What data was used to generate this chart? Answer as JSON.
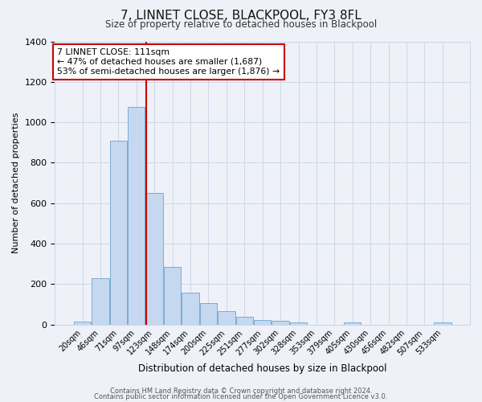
{
  "title": "7, LINNET CLOSE, BLACKPOOL, FY3 8FL",
  "subtitle": "Size of property relative to detached houses in Blackpool",
  "xlabel": "Distribution of detached houses by size in Blackpool",
  "ylabel": "Number of detached properties",
  "bar_labels": [
    "20sqm",
    "46sqm",
    "71sqm",
    "97sqm",
    "123sqm",
    "148sqm",
    "174sqm",
    "200sqm",
    "225sqm",
    "251sqm",
    "277sqm",
    "302sqm",
    "328sqm",
    "353sqm",
    "379sqm",
    "405sqm",
    "430sqm",
    "456sqm",
    "482sqm",
    "507sqm",
    "533sqm"
  ],
  "bar_values": [
    15,
    228,
    910,
    1075,
    650,
    285,
    158,
    105,
    68,
    38,
    22,
    18,
    10,
    0,
    0,
    10,
    0,
    0,
    0,
    0,
    10
  ],
  "bar_color": "#c5d8f0",
  "bar_edge_color": "#7badd4",
  "vline_color": "#cc0000",
  "annotation_title": "7 LINNET CLOSE: 111sqm",
  "annotation_line1": "← 47% of detached houses are smaller (1,687)",
  "annotation_line2": "53% of semi-detached houses are larger (1,876) →",
  "annotation_box_color": "#ffffff",
  "annotation_box_edge": "#cc0000",
  "ylim": [
    0,
    1400
  ],
  "yticks": [
    0,
    200,
    400,
    600,
    800,
    1000,
    1200,
    1400
  ],
  "grid_color": "#d0d8e8",
  "footer1": "Contains HM Land Registry data © Crown copyright and database right 2024.",
  "footer2": "Contains public sector information licensed under the Open Government Licence v3.0.",
  "bg_color": "#eef2f8"
}
